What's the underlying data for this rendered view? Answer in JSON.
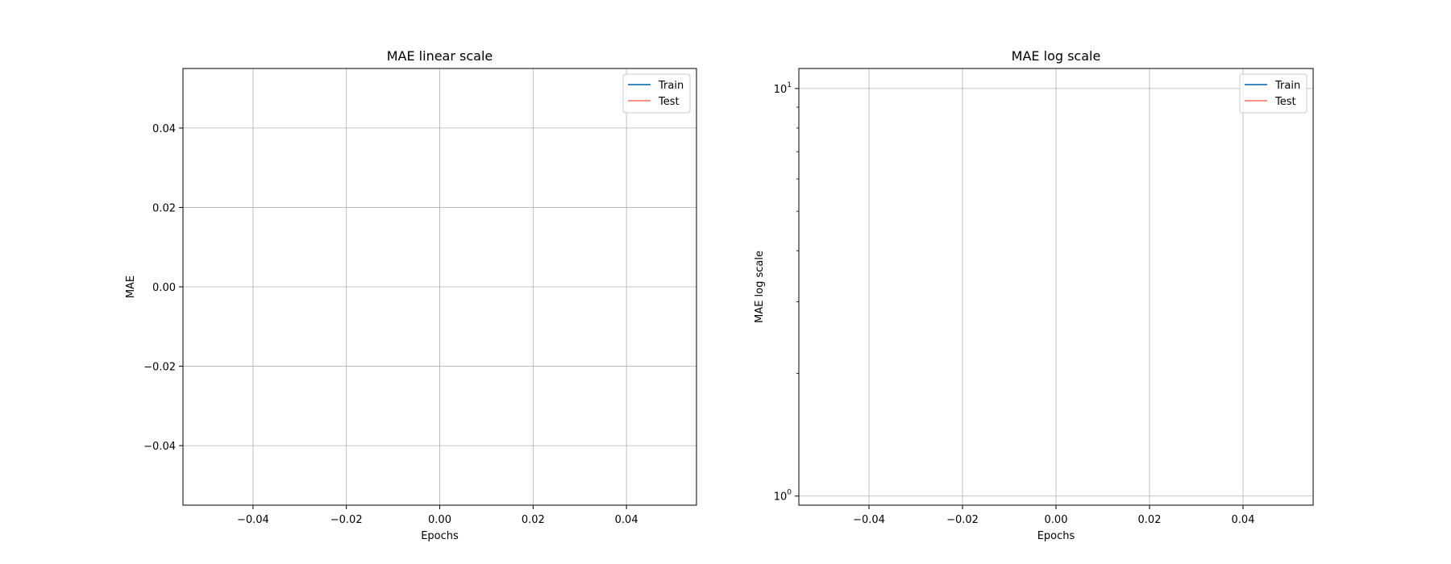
{
  "chart_data": [
    {
      "type": "line",
      "title": "MAE linear scale",
      "xlabel": "Epochs",
      "ylabel": "MAE",
      "xlim": [
        -0.055,
        0.055
      ],
      "ylim": [
        -0.055,
        0.055
      ],
      "yscale": "linear",
      "grid": true,
      "legend_position": "top-right",
      "x_ticks": [
        -0.04,
        -0.02,
        0.0,
        0.02,
        0.04
      ],
      "x_tick_labels": [
        "−0.04",
        "−0.02",
        "0.00",
        "0.02",
        "0.04"
      ],
      "y_ticks": [
        -0.04,
        -0.02,
        0.0,
        0.02,
        0.04
      ],
      "y_tick_labels": [
        "−0.04",
        "−0.02",
        "0.00",
        "0.02",
        "0.04"
      ],
      "series": [
        {
          "name": "Train",
          "color": "#1f77b4",
          "x": [],
          "y": []
        },
        {
          "name": "Test",
          "color": "#fa8072",
          "x": [],
          "y": []
        }
      ]
    },
    {
      "type": "line",
      "title": "MAE log scale",
      "xlabel": "Epochs",
      "ylabel": "MAE log scale",
      "xlim": [
        -0.055,
        0.055
      ],
      "ylim": [
        0.95,
        11.2
      ],
      "yscale": "log",
      "grid": true,
      "legend_position": "top-right",
      "x_ticks": [
        -0.04,
        -0.02,
        0.0,
        0.02,
        0.04
      ],
      "x_tick_labels": [
        "−0.04",
        "−0.02",
        "0.00",
        "0.02",
        "0.04"
      ],
      "y_ticks": [
        1,
        10
      ],
      "y_tick_labels": [
        [
          "10",
          "0"
        ],
        [
          "10",
          "1"
        ]
      ],
      "y_minor_ticks": [
        2,
        3,
        4,
        5,
        6,
        7,
        8,
        9
      ],
      "series": [
        {
          "name": "Train",
          "color": "#1f77b4",
          "x": [],
          "y": []
        },
        {
          "name": "Test",
          "color": "#fa8072",
          "x": [],
          "y": []
        }
      ]
    }
  ]
}
